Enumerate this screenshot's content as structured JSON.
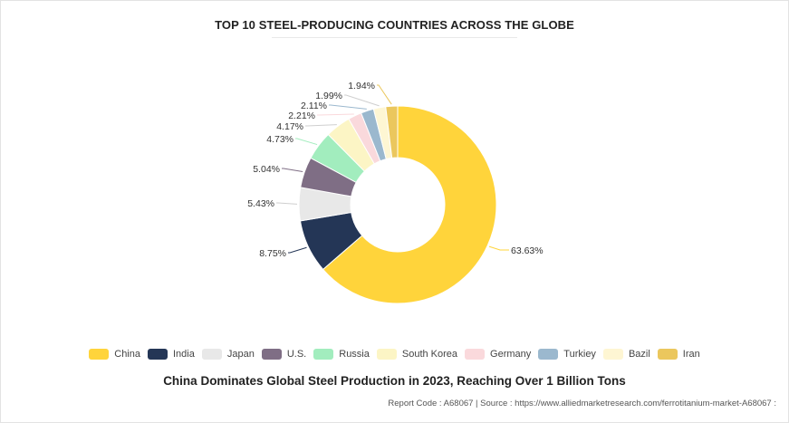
{
  "chart_data": {
    "type": "pie",
    "variant": "donut",
    "title": "TOP 10 STEEL-PRODUCING COUNTRIES ACROSS THE GLOBE",
    "categories": [
      "China",
      "India",
      "Japan",
      "U.S.",
      "Russia",
      "South Korea",
      "Germany",
      "Turkiey",
      "Bazil",
      "Iran"
    ],
    "values": [
      63.63,
      8.75,
      5.43,
      5.04,
      4.73,
      4.17,
      2.21,
      2.11,
      1.99,
      1.94
    ],
    "labels": [
      "63.63%",
      "8.75%",
      "5.43%",
      "5.04%",
      "4.73%",
      "4.17%",
      "2.21%",
      "2.11%",
      "1.99%",
      "1.94%"
    ],
    "colors": [
      "#FFD43B",
      "#243656",
      "#E8E8E8",
      "#7F6E85",
      "#A2EDBE",
      "#FCF5C5",
      "#FAD9DC",
      "#9BB8CE",
      "#FEF6D3",
      "#EBC75D"
    ],
    "legend_position": "bottom"
  },
  "caption": "China Dominates Global Steel Production in 2023, Reaching Over 1 Billion Tons",
  "footer": "Report Code : A68067  |  Source : https://www.alliedmarketresearch.com/ferrotitanium-market-A68067 :"
}
